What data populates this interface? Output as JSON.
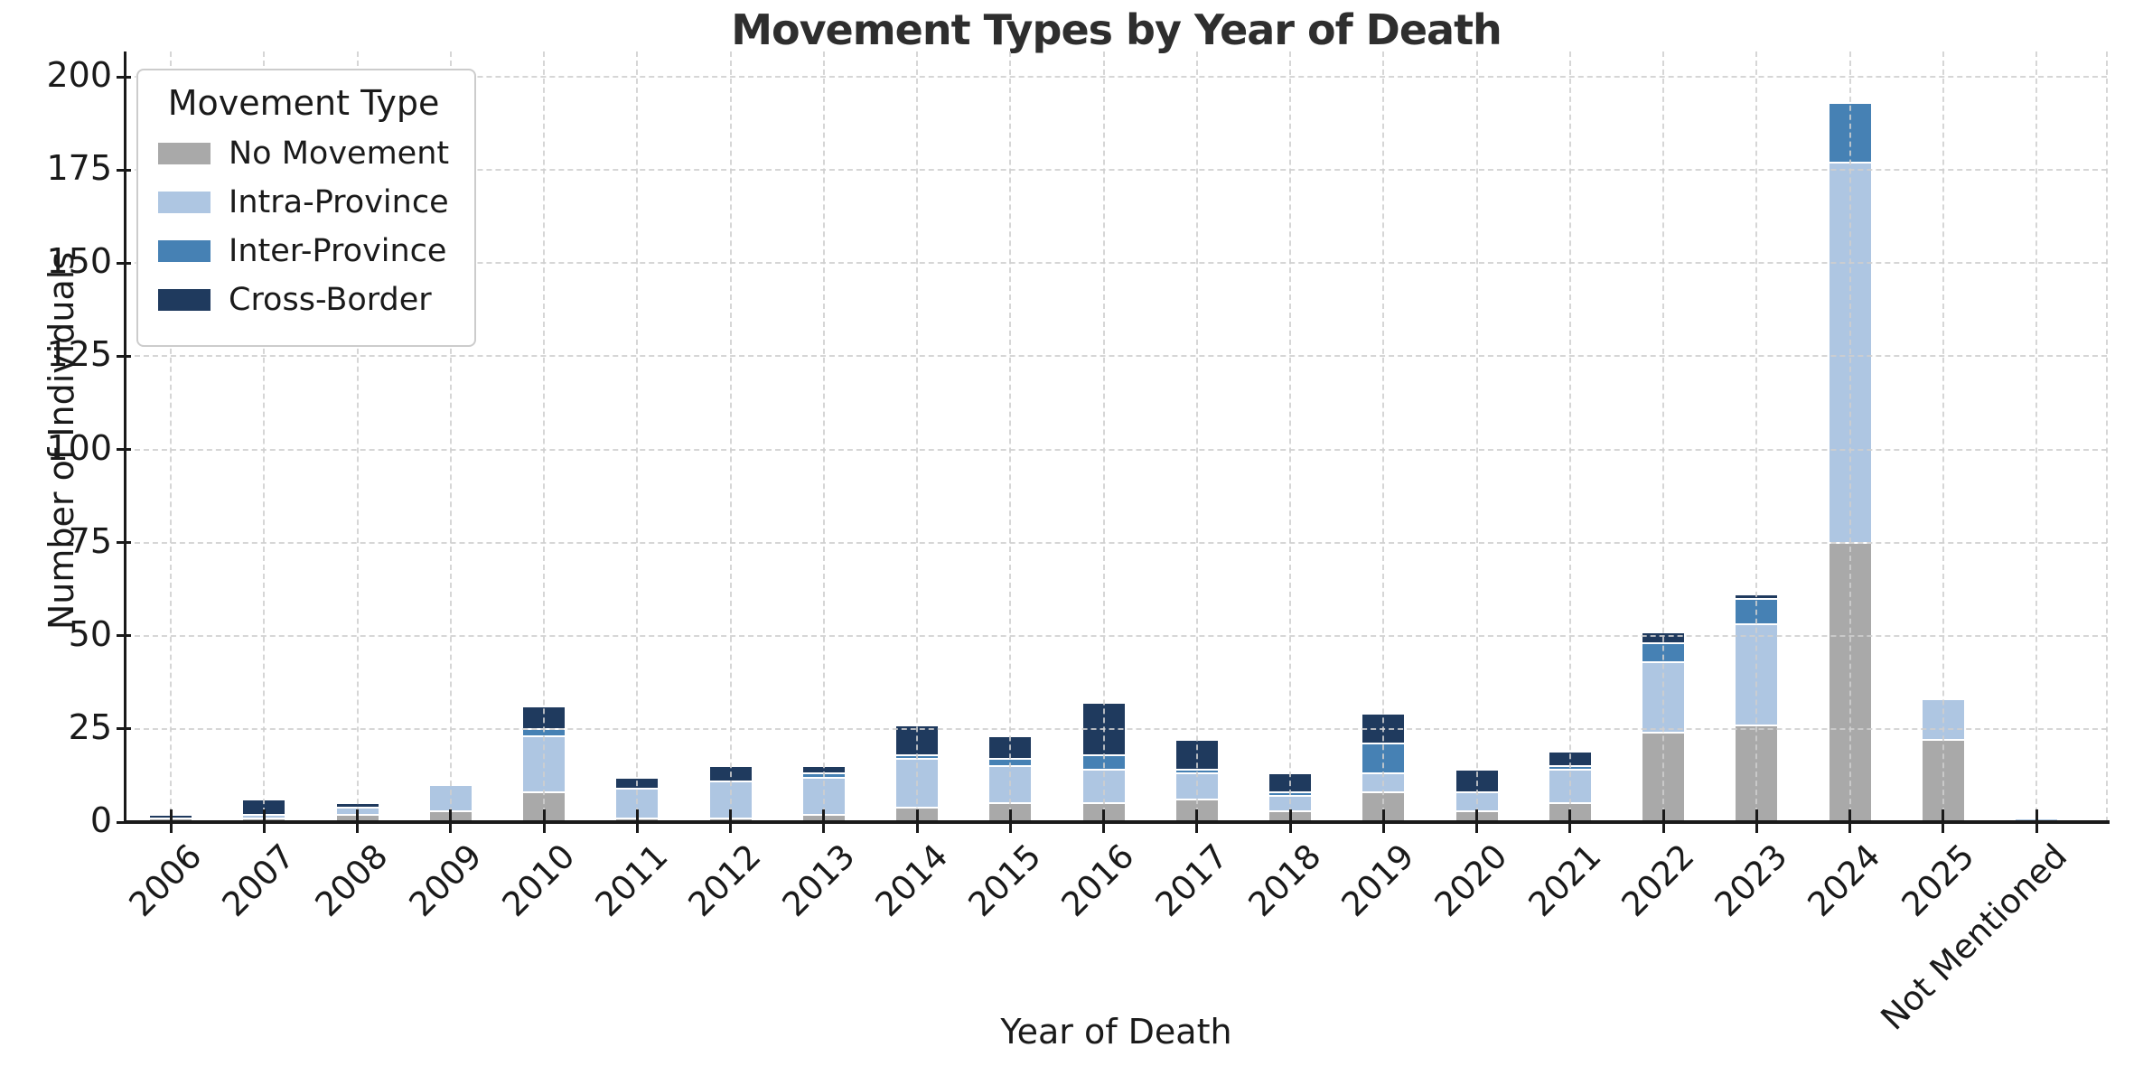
{
  "title": "Movement Types by Year of Death",
  "x_axis": {
    "label": "Year of Death"
  },
  "y_axis": {
    "label": "Number of Individuals",
    "ticks": [
      0,
      25,
      50,
      75,
      100,
      125,
      150,
      175,
      200
    ]
  },
  "legend": {
    "title": "Movement Type",
    "items": [
      {
        "label": "No Movement",
        "color": "#a9a9a9"
      },
      {
        "label": "Intra-Province",
        "color": "#aec6e2"
      },
      {
        "label": "Inter-Province",
        "color": "#4681b4"
      },
      {
        "label": "Cross-Border",
        "color": "#1f3a5e"
      }
    ]
  },
  "colors": {
    "background": "#ffffff",
    "grid": "#cfcfcf",
    "axis": "#1a1a1a",
    "title_text": "#2e2e2e",
    "bar_edge": "#ffffff"
  },
  "chart_data": {
    "type": "bar",
    "stacked": true,
    "title": "Movement Types by Year of Death",
    "xlabel": "Year of Death",
    "ylabel": "Number of Individuals",
    "ylim": [
      0,
      200
    ],
    "grid": true,
    "legend_position": "upper-left",
    "categories": [
      "2006",
      "2007",
      "2008",
      "2009",
      "2010",
      "2011",
      "2012",
      "2013",
      "2014",
      "2015",
      "2016",
      "2017",
      "2018",
      "2019",
      "2020",
      "2021",
      "2022",
      "2023",
      "2024",
      "2025",
      "Not Mentioned"
    ],
    "series": [
      {
        "name": "No Movement",
        "color": "#a9a9a9",
        "values": [
          1,
          1,
          2,
          3,
          8,
          1,
          1,
          2,
          4,
          5,
          5,
          6,
          3,
          8,
          3,
          5,
          24,
          26,
          75,
          22,
          0
        ]
      },
      {
        "name": "Intra-Province",
        "color": "#aec6e2",
        "values": [
          0,
          1,
          2,
          7,
          15,
          8,
          10,
          10,
          13,
          10,
          9,
          7,
          4,
          5,
          5,
          9,
          19,
          27,
          102,
          11,
          1
        ]
      },
      {
        "name": "Inter-Province",
        "color": "#4681b4",
        "values": [
          0,
          0,
          0,
          0,
          2,
          0,
          0,
          1,
          1,
          2,
          4,
          1,
          1,
          8,
          0,
          1,
          5,
          7,
          16,
          0,
          0
        ]
      },
      {
        "name": "Cross-Border",
        "color": "#1f3a5e",
        "values": [
          1,
          4,
          1,
          0,
          6,
          3,
          4,
          2,
          8,
          6,
          14,
          8,
          5,
          8,
          6,
          4,
          3,
          1,
          0,
          0,
          0
        ]
      }
    ],
    "totals": [
      2,
      6,
      5,
      10,
      31,
      12,
      15,
      15,
      26,
      23,
      32,
      22,
      13,
      29,
      14,
      19,
      51,
      61,
      193,
      33,
      1
    ]
  }
}
